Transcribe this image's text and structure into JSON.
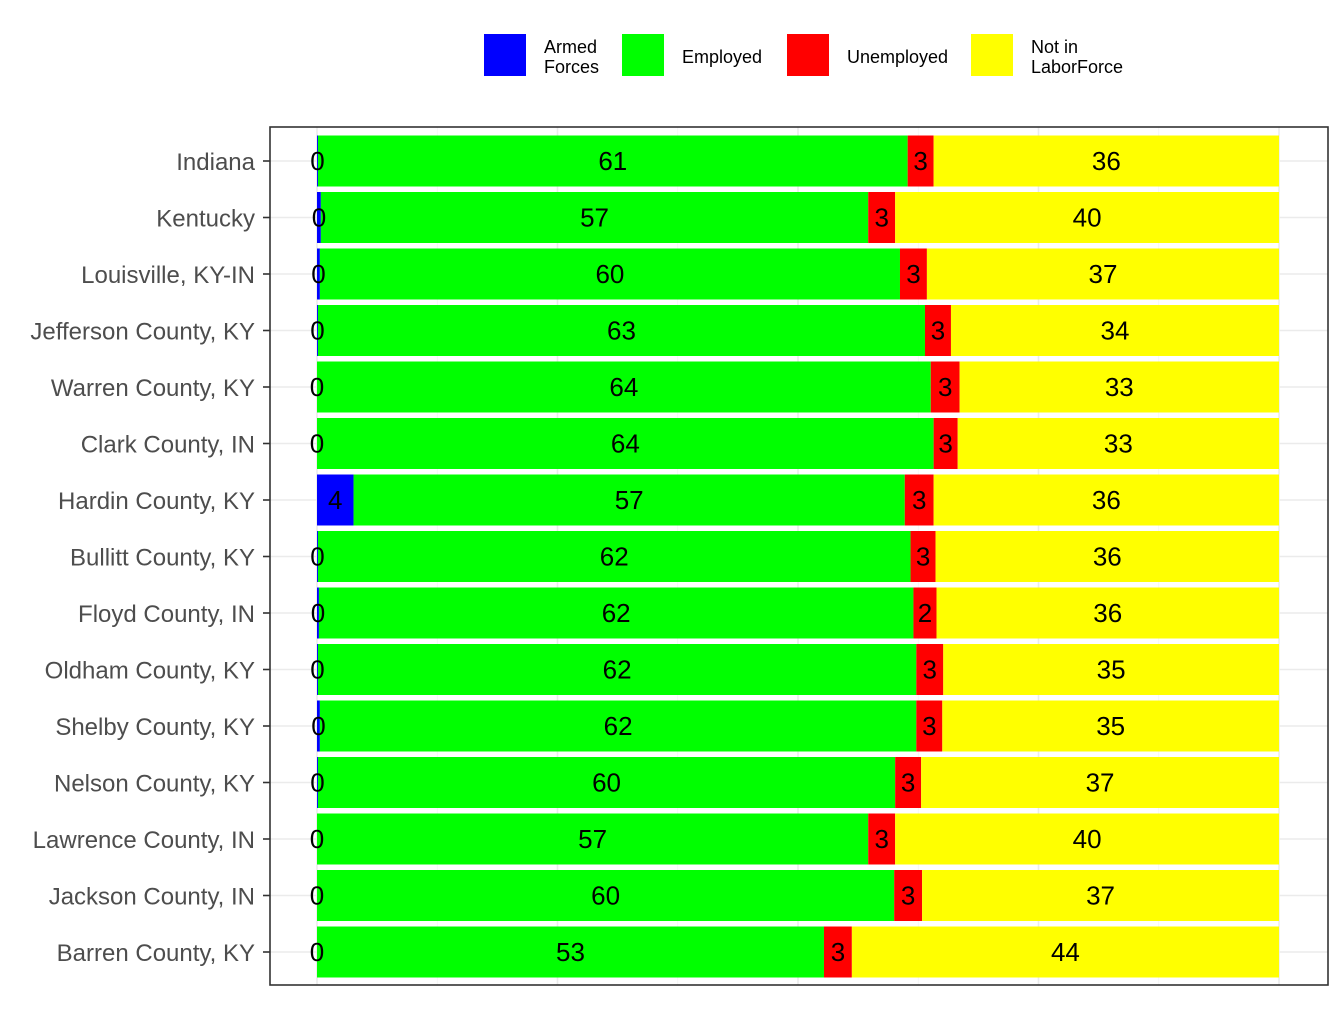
{
  "chart_data": {
    "type": "bar",
    "orientation": "horizontal",
    "stacked": true,
    "categories": [
      "Indiana",
      "Kentucky",
      "Louisville, KY-IN",
      "Jefferson County, KY",
      "Warren County, KY",
      "Clark County, IN",
      "Hardin County, KY",
      "Bullitt County, KY",
      "Floyd County, IN",
      "Oldham County, KY",
      "Shelby County, KY",
      "Nelson County, KY",
      "Lawrence County, IN",
      "Jackson County, IN",
      "Barren County, KY"
    ],
    "series": [
      {
        "name": "Armed Forces",
        "legend_lines": [
          "Armed",
          "Forces"
        ],
        "color": "#0000ff",
        "values": [
          0.1,
          0.4,
          0.3,
          0.1,
          0.0,
          0.0,
          3.8,
          0.1,
          0.2,
          0.1,
          0.3,
          0.1,
          0.0,
          0.0,
          0.0
        ],
        "labels": [
          "0",
          "0",
          "0",
          "0",
          "0",
          "0",
          "4",
          "0",
          "0",
          "0",
          "0",
          "0",
          "0",
          "0",
          "0"
        ]
      },
      {
        "name": "Employed",
        "legend_lines": [
          "Employed"
        ],
        "color": "#00ff00",
        "values": [
          61.3,
          56.9,
          60.3,
          63.1,
          63.8,
          64.1,
          57.3,
          61.6,
          61.8,
          62.2,
          62.0,
          60.0,
          57.3,
          60.0,
          52.7
        ],
        "labels": [
          "61",
          "57",
          "60",
          "63",
          "64",
          "64",
          "57",
          "62",
          "62",
          "62",
          "62",
          "60",
          "57",
          "60",
          "53"
        ]
      },
      {
        "name": "Unemployed",
        "legend_lines": [
          "Unemployed"
        ],
        "color": "#ff0000",
        "values": [
          2.7,
          2.8,
          2.8,
          2.7,
          3.0,
          2.5,
          3.0,
          2.6,
          2.4,
          2.8,
          2.7,
          2.7,
          2.8,
          2.9,
          2.9
        ],
        "labels": [
          "3",
          "3",
          "3",
          "3",
          "3",
          "3",
          "3",
          "3",
          "2",
          "3",
          "3",
          "3",
          "3",
          "3",
          "3"
        ]
      },
      {
        "name": "Not in LaborForce",
        "legend_lines": [
          "Not in",
          "LaborForce"
        ],
        "color": "#ffff00",
        "values": [
          35.9,
          39.9,
          36.6,
          34.1,
          33.2,
          33.4,
          35.9,
          35.7,
          35.6,
          34.9,
          35.0,
          37.2,
          39.9,
          37.1,
          44.4
        ],
        "labels": [
          "36",
          "40",
          "37",
          "34",
          "33",
          "33",
          "36",
          "36",
          "36",
          "35",
          "35",
          "37",
          "40",
          "37",
          "44"
        ]
      }
    ],
    "xlim": [
      -5,
      105
    ],
    "gridlines": [
      0,
      12.5,
      25,
      37.5,
      50,
      62.5,
      75,
      87.5,
      100
    ],
    "x_tick_labels": [],
    "title": "",
    "xlabel": "",
    "ylabel": "",
    "grid": true,
    "legend_position": "top"
  }
}
